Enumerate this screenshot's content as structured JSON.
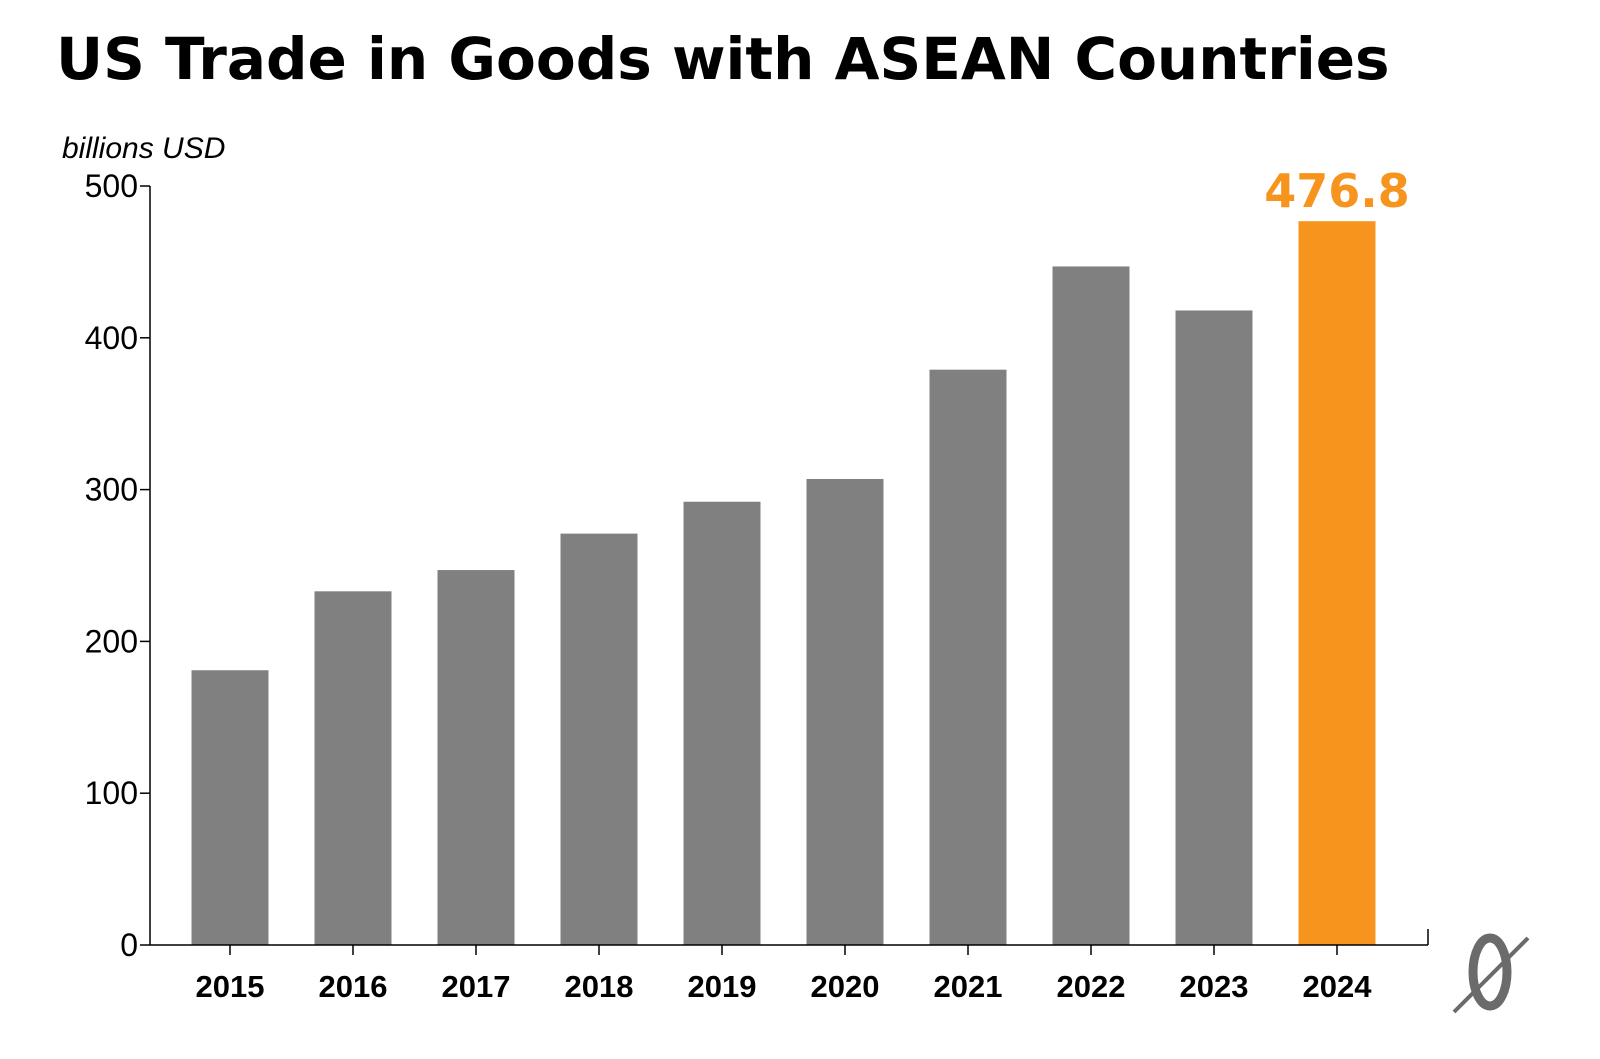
{
  "chart_data": {
    "type": "bar",
    "title": "US Trade in Goods with ASEAN Countries",
    "ylabel": "billions USD",
    "xlabel": "",
    "categories": [
      "2015",
      "2016",
      "2017",
      "2018",
      "2019",
      "2020",
      "2021",
      "2022",
      "2023",
      "2024"
    ],
    "values": [
      181,
      233,
      247,
      271,
      292,
      307,
      379,
      447,
      418,
      476.8
    ],
    "ylim": [
      0,
      500
    ],
    "yticks": [
      "0",
      "100",
      "200",
      "300",
      "400",
      "500"
    ],
    "ytick_values": [
      0,
      100,
      200,
      300,
      400,
      500
    ],
    "data_labels": [
      {
        "category": "2024",
        "text": "476.8"
      }
    ],
    "grid": false,
    "legend": "none",
    "colors": {
      "bar": "#808080",
      "highlight": "#f7941d",
      "axis": "#000000",
      "logo": "#6b6b6b"
    },
    "highlight_category": "2024"
  },
  "logo": {
    "name": "publisher-logo-icon"
  }
}
